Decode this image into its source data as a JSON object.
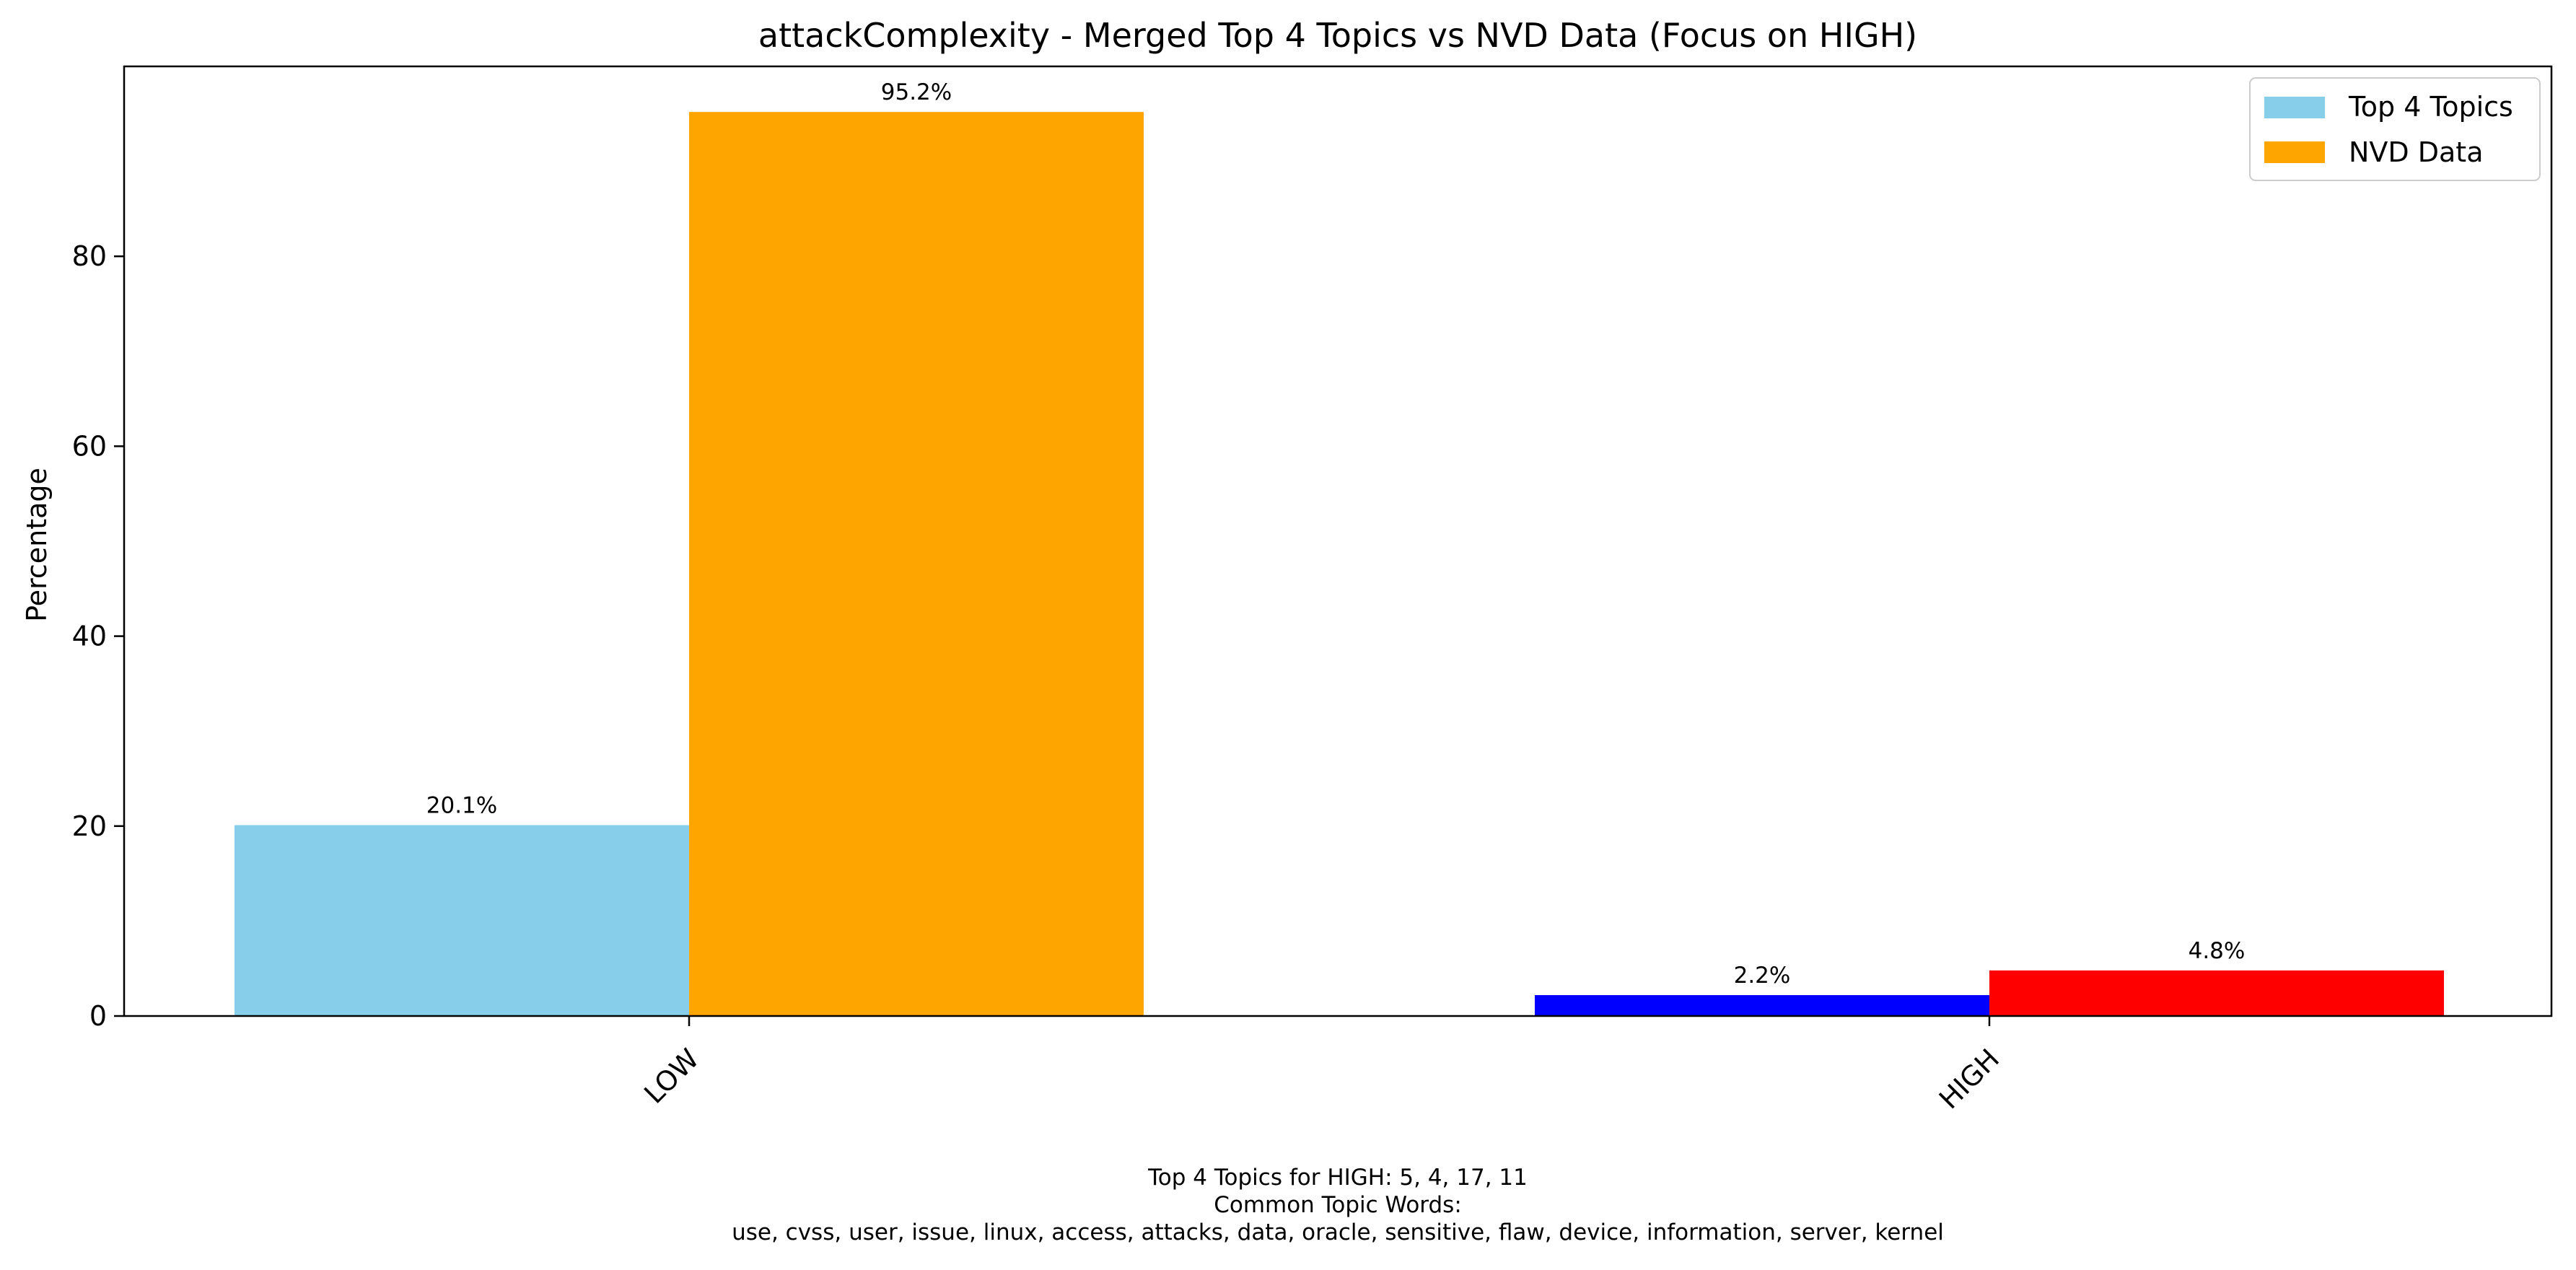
{
  "chart_data": {
    "type": "bar",
    "title": "attackComplexity - Merged Top 4 Topics vs NVD Data (Focus on HIGH)",
    "xlabel": "",
    "ylabel": "Percentage",
    "categories": [
      "LOW",
      "HIGH"
    ],
    "ylim": [
      0,
      100
    ],
    "yticks": [
      0,
      20,
      40,
      60,
      80
    ],
    "grid": false,
    "legend_position": "top-right",
    "series": [
      {
        "name": "Top 4 Topics",
        "values": [
          20.1,
          2.2
        ],
        "value_labels": [
          "20.1%",
          "2.2%"
        ],
        "color": "#87CEEB",
        "point_colors": [
          "#87CEEB",
          "#0000FF"
        ]
      },
      {
        "name": "NVD Data",
        "values": [
          95.2,
          4.8
        ],
        "value_labels": [
          "95.2%",
          "4.8%"
        ],
        "color": "#FFA500",
        "point_colors": [
          "#FFA500",
          "#FF0000"
        ]
      }
    ],
    "footnote": {
      "line1": "Top 4 Topics for HIGH: 5, 4, 17, 11",
      "line2": "Common Topic Words:",
      "line3": "use,  cvss,  user,  issue,  linux,  access,  attacks,  data,  oracle,  sensitive,  flaw,  device,  information,  server,  kernel"
    }
  }
}
